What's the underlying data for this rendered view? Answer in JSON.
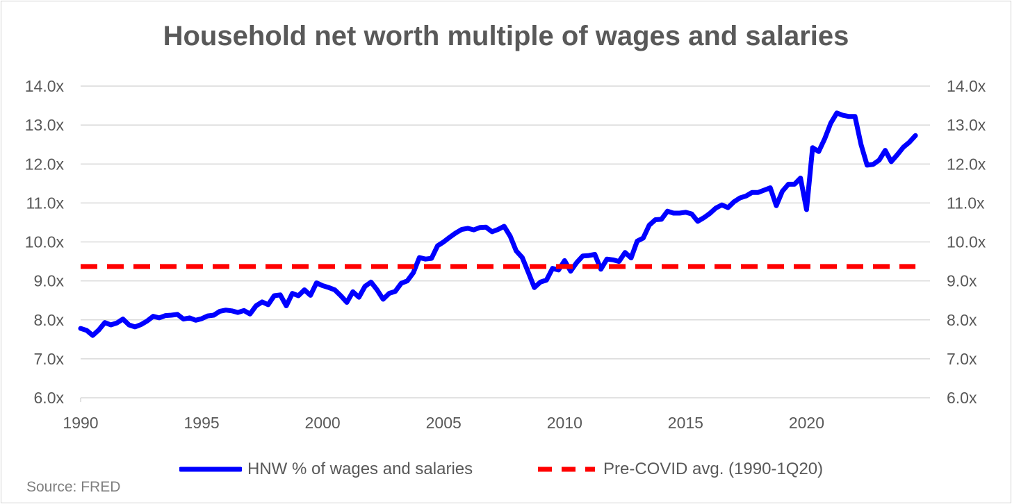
{
  "chart_data": {
    "type": "line",
    "title": "Household net worth multiple of wages and salaries",
    "xlabel": "",
    "ylabel": "",
    "xlim": [
      1990,
      2025.1
    ],
    "ylim": [
      6,
      14
    ],
    "y_ticks": [
      "6.0x",
      "7.0x",
      "8.0x",
      "9.0x",
      "10.0x",
      "11.0x",
      "12.0x",
      "13.0x",
      "14.0x"
    ],
    "x_ticks": [
      "1990",
      "1995",
      "2000",
      "2005",
      "2010",
      "2015",
      "2020"
    ],
    "grid": true,
    "legend_position": "bottom",
    "source": "Source: FRED",
    "series": [
      {
        "name": "HNW % of wages and salaries",
        "color": "#0000FF",
        "style": "solid",
        "x": [
          1990.0,
          1990.25,
          1990.5,
          1990.75,
          1991.0,
          1991.25,
          1991.5,
          1991.75,
          1992.0,
          1992.25,
          1992.5,
          1992.75,
          1993.0,
          1993.25,
          1993.5,
          1993.75,
          1994.0,
          1994.25,
          1994.5,
          1994.75,
          1995.0,
          1995.25,
          1995.5,
          1995.75,
          1996.0,
          1996.25,
          1996.5,
          1996.75,
          1997.0,
          1997.25,
          1997.5,
          1997.75,
          1998.0,
          1998.25,
          1998.5,
          1998.75,
          1999.0,
          1999.25,
          1999.5,
          1999.75,
          2000.0,
          2000.25,
          2000.5,
          2000.75,
          2001.0,
          2001.25,
          2001.5,
          2001.75,
          2002.0,
          2002.25,
          2002.5,
          2002.75,
          2003.0,
          2003.25,
          2003.5,
          2003.75,
          2004.0,
          2004.25,
          2004.5,
          2004.75,
          2005.0,
          2005.25,
          2005.5,
          2005.75,
          2006.0,
          2006.25,
          2006.5,
          2006.75,
          2007.0,
          2007.25,
          2007.5,
          2007.75,
          2008.0,
          2008.25,
          2008.5,
          2008.75,
          2009.0,
          2009.25,
          2009.5,
          2009.75,
          2010.0,
          2010.25,
          2010.5,
          2010.75,
          2011.0,
          2011.25,
          2011.5,
          2011.75,
          2012.0,
          2012.25,
          2012.5,
          2012.75,
          2013.0,
          2013.25,
          2013.5,
          2013.75,
          2014.0,
          2014.25,
          2014.5,
          2014.75,
          2015.0,
          2015.25,
          2015.5,
          2015.75,
          2016.0,
          2016.25,
          2016.5,
          2016.75,
          2017.0,
          2017.25,
          2017.5,
          2017.75,
          2018.0,
          2018.25,
          2018.5,
          2018.75,
          2019.0,
          2019.25,
          2019.5,
          2019.75,
          2020.0,
          2020.25,
          2020.5,
          2020.75,
          2021.0,
          2021.25,
          2021.5,
          2021.75,
          2022.0,
          2022.25,
          2022.5,
          2022.75,
          2023.0,
          2023.25,
          2023.5,
          2023.75,
          2024.0,
          2024.25,
          2024.5
        ],
        "values": [
          7.78,
          7.73,
          7.6,
          7.74,
          7.93,
          7.87,
          7.92,
          8.02,
          7.87,
          7.82,
          7.88,
          7.97,
          8.09,
          8.05,
          8.11,
          8.12,
          8.14,
          8.02,
          8.05,
          7.99,
          8.03,
          8.1,
          8.12,
          8.22,
          8.25,
          8.23,
          8.19,
          8.24,
          8.15,
          8.36,
          8.46,
          8.39,
          8.62,
          8.64,
          8.36,
          8.68,
          8.62,
          8.77,
          8.63,
          8.95,
          8.88,
          8.83,
          8.77,
          8.62,
          8.45,
          8.72,
          8.58,
          8.86,
          8.97,
          8.77,
          8.53,
          8.68,
          8.73,
          8.94,
          9.0,
          9.21,
          9.6,
          9.56,
          9.58,
          9.9,
          10.0,
          10.12,
          10.23,
          10.32,
          10.35,
          10.31,
          10.37,
          10.38,
          10.26,
          10.32,
          10.4,
          10.15,
          9.77,
          9.6,
          9.22,
          8.83,
          8.97,
          9.02,
          9.32,
          9.28,
          9.52,
          9.25,
          9.47,
          9.64,
          9.65,
          9.68,
          9.3,
          9.56,
          9.54,
          9.5,
          9.73,
          9.59,
          10.02,
          10.1,
          10.43,
          10.57,
          10.58,
          10.79,
          10.74,
          10.74,
          10.76,
          10.72,
          10.53,
          10.62,
          10.73,
          10.87,
          10.95,
          10.88,
          11.03,
          11.13,
          11.18,
          11.27,
          11.27,
          11.33,
          11.39,
          10.93,
          11.3,
          11.48,
          11.48,
          11.64,
          10.83,
          12.42,
          12.32,
          12.65,
          13.05,
          13.31,
          13.25,
          13.22,
          13.22,
          12.5,
          11.97,
          11.99,
          12.1,
          12.35,
          12.06,
          12.24,
          12.43,
          12.56,
          12.73
        ]
      },
      {
        "name": "Pre-COVID avg. (1990-1Q20)",
        "color": "#FF0000",
        "style": "dashed",
        "x": [
          1990.0,
          2024.5
        ],
        "values": [
          9.37,
          9.37
        ]
      }
    ]
  }
}
